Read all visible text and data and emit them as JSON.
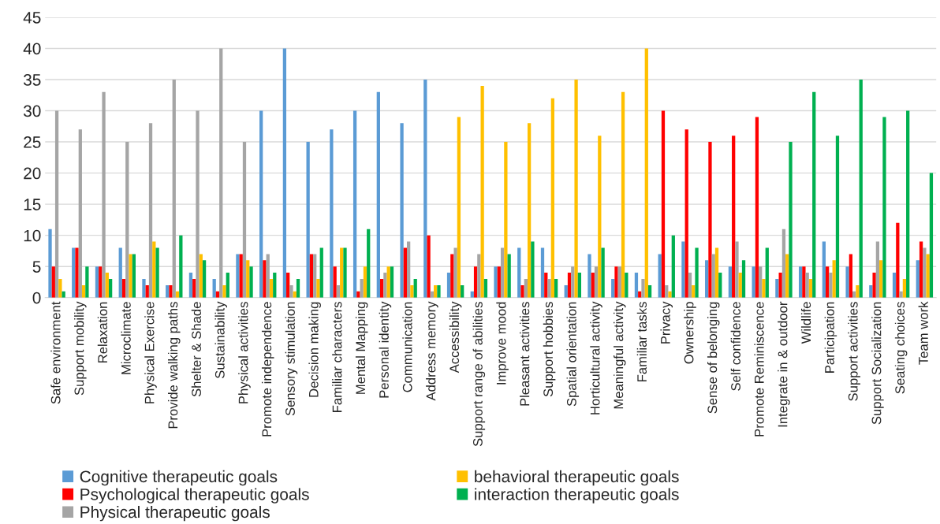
{
  "chart_data": {
    "type": "bar",
    "categories": [
      "Safe environment",
      "Support mobility",
      "Relaxation",
      "Microclimate",
      "Physical Exercise",
      "Provide walking paths",
      "Shelter & Shade",
      "Sustainability",
      "Physical activities",
      "Promote independence",
      "Sensory stimulation",
      "Decision making",
      "Familiar characters",
      "Mental Mapping",
      "Personal identity",
      "Communication",
      "Address memory",
      "Accessibility",
      "Support range of abilities",
      "Improve mood",
      "Pleasant activities",
      "Support hobbies",
      "Spatial orientation",
      "Horticultural activity",
      "Meaningful activity",
      "Familiar tasks",
      "Privacy",
      "Ownership",
      "Sense of belonging",
      "Self confidence",
      "Promote Reminiscence",
      "Integrate in & outdoor",
      "Wildlife",
      "Participation",
      "Support activities",
      "Support Socialization",
      "Seating choices",
      "Team work"
    ],
    "series": [
      {
        "name": "Cognitive therapeutic goals",
        "color": "#5b9bd5",
        "values": [
          11,
          8,
          5,
          8,
          3,
          2,
          4,
          3,
          7,
          30,
          40,
          25,
          27,
          30,
          33,
          28,
          35,
          4,
          1,
          5,
          8,
          8,
          2,
          7,
          3,
          4,
          7,
          9,
          6,
          5,
          5,
          3,
          5,
          9,
          5,
          2,
          4,
          6
        ]
      },
      {
        "name": "Psychological therapeutic goals",
        "color": "#ff0000",
        "values": [
          5,
          8,
          5,
          3,
          2,
          2,
          3,
          1,
          7,
          6,
          4,
          7,
          5,
          1,
          3,
          8,
          10,
          7,
          5,
          5,
          2,
          4,
          4,
          4,
          5,
          1,
          30,
          27,
          25,
          26,
          29,
          4,
          5,
          5,
          7,
          4,
          12,
          9
        ]
      },
      {
        "name": "Physical therapeutic goals",
        "color": "#a5a5a5",
        "values": [
          30,
          27,
          33,
          25,
          28,
          35,
          30,
          40,
          25,
          7,
          2,
          7,
          2,
          3,
          4,
          9,
          1,
          8,
          7,
          8,
          3,
          3,
          5,
          5,
          5,
          3,
          2,
          4,
          7,
          9,
          5,
          11,
          4,
          4,
          1,
          9,
          1,
          8
        ]
      },
      {
        "name": "behavioral therapeutic goals",
        "color": "#ffc000",
        "values": [
          3,
          2,
          4,
          7,
          9,
          1,
          7,
          2,
          6,
          3,
          1,
          3,
          8,
          5,
          5,
          2,
          2,
          29,
          34,
          25,
          28,
          32,
          35,
          26,
          33,
          40,
          1,
          2,
          8,
          4,
          3,
          7,
          3,
          6,
          2,
          6,
          3,
          7
        ]
      },
      {
        "name": "interaction therapeutic goals",
        "color": "#00b050",
        "values": [
          1,
          5,
          3,
          7,
          8,
          10,
          6,
          4,
          5,
          4,
          3,
          8,
          8,
          11,
          5,
          3,
          2,
          2,
          3,
          7,
          9,
          3,
          4,
          8,
          4,
          2,
          10,
          8,
          4,
          6,
          8,
          25,
          33,
          26,
          35,
          29,
          30,
          20
        ]
      }
    ],
    "ylim": [
      0,
      45
    ],
    "yticks": [
      0,
      5,
      10,
      15,
      20,
      25,
      30,
      35,
      40,
      45
    ],
    "grid": "y",
    "legend": "bottom"
  }
}
